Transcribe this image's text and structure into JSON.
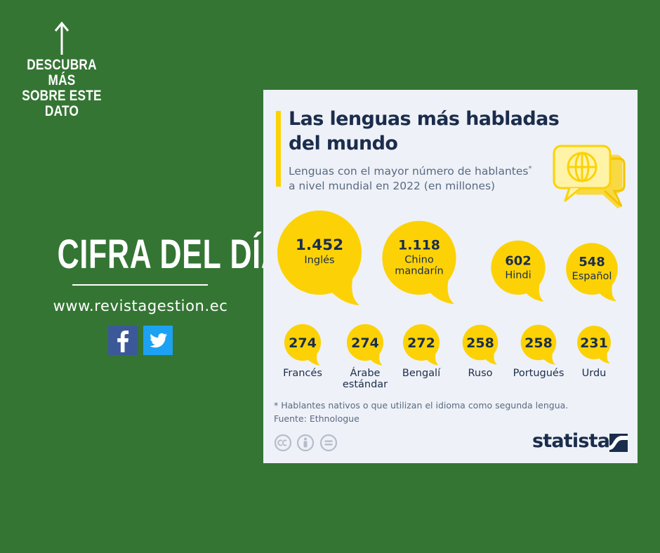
{
  "promo": {
    "cta_text": "DESCUBRA MÁS\nSOBRE ESTE\nDATO",
    "hero_title": "CIFRA DEL DÍA",
    "website": "www.revistagestion.ec",
    "social": [
      {
        "name": "facebook",
        "icon": "facebook-icon",
        "color": "#3b5998"
      },
      {
        "name": "twitter",
        "icon": "twitter-icon",
        "color": "#1da1f2"
      }
    ]
  },
  "card": {
    "title": "Las lenguas más habladas\ndel mundo",
    "subtitle_line1": "Lenguas con el mayor número de hablantes",
    "subtitle_marker": "*",
    "subtitle_line2": "a nivel mundial en 2022 (en millones)",
    "footnote": "* Hablantes nativos o que utilizan el idioma como segunda lengua.",
    "source": "Fuente: Ethnologue",
    "brand": "statista",
    "license_icons": [
      "cc-icon",
      "by-icon",
      "nd-icon"
    ]
  },
  "colors": {
    "background": "#347534",
    "card": "#eef1f7",
    "bubble": "#fcd206",
    "text_dark": "#1b2d4c"
  },
  "chart_data": {
    "type": "bubble",
    "title": "Las lenguas más habladas del mundo",
    "subtitle": "Lenguas con el mayor número de hablantes* a nivel mundial en 2022 (en millones)",
    "unit": "millones",
    "series": [
      {
        "category": "Inglés",
        "value": 1452,
        "value_label": "1.452",
        "label_inside": true
      },
      {
        "category": "Chino mandarín",
        "value": 1118,
        "value_label": "1.118",
        "label_inside": true
      },
      {
        "category": "Hindi",
        "value": 602,
        "value_label": "602",
        "label_inside": true
      },
      {
        "category": "Español",
        "value": 548,
        "value_label": "548",
        "label_inside": true
      },
      {
        "category": "Francés",
        "value": 274,
        "value_label": "274",
        "label_inside": false
      },
      {
        "category": "Árabe estándar",
        "value": 274,
        "value_label": "274",
        "label_inside": false
      },
      {
        "category": "Bengalí",
        "value": 272,
        "value_label": "272",
        "label_inside": false
      },
      {
        "category": "Ruso",
        "value": 258,
        "value_label": "258",
        "label_inside": false
      },
      {
        "category": "Portugués",
        "value": 258,
        "value_label": "258",
        "label_inside": false
      },
      {
        "category": "Urdu",
        "value": 231,
        "value_label": "231",
        "label_inside": false
      }
    ]
  }
}
